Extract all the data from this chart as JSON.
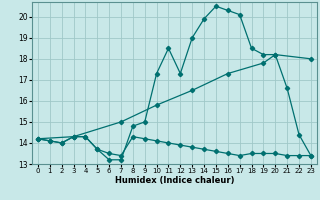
{
  "title": "",
  "xlabel": "Humidex (Indice chaleur)",
  "xlim": [
    -0.5,
    23.5
  ],
  "ylim": [
    13,
    20.7
  ],
  "yticks": [
    13,
    14,
    15,
    16,
    17,
    18,
    19,
    20
  ],
  "xticks": [
    0,
    1,
    2,
    3,
    4,
    5,
    6,
    7,
    8,
    9,
    10,
    11,
    12,
    13,
    14,
    15,
    16,
    17,
    18,
    19,
    20,
    21,
    22,
    23
  ],
  "bg_color": "#c8e8e8",
  "grid_color": "#a0c8c8",
  "line_color": "#007070",
  "line1_x": [
    0,
    1,
    2,
    3,
    4,
    5,
    6,
    7,
    8,
    9,
    10,
    11,
    12,
    13,
    14,
    15,
    16,
    17,
    18,
    19,
    20,
    21,
    22,
    23
  ],
  "line1_y": [
    14.2,
    14.1,
    14.0,
    14.3,
    14.3,
    13.7,
    13.2,
    13.2,
    14.8,
    15.0,
    17.3,
    18.5,
    17.3,
    19.0,
    19.9,
    20.5,
    20.3,
    20.1,
    18.5,
    18.2,
    18.2,
    16.6,
    14.4,
    13.4
  ],
  "line2_x": [
    0,
    1,
    2,
    3,
    4,
    5,
    6,
    7,
    8,
    9,
    10,
    11,
    12,
    13,
    14,
    15,
    16,
    17,
    18,
    19,
    20,
    21,
    22,
    23
  ],
  "line2_y": [
    14.2,
    14.1,
    14.0,
    14.3,
    14.3,
    13.7,
    13.5,
    13.4,
    14.3,
    14.2,
    14.1,
    14.0,
    13.9,
    13.8,
    13.7,
    13.6,
    13.5,
    13.4,
    13.5,
    13.5,
    13.5,
    13.4,
    13.4,
    13.4
  ],
  "line3_x": [
    0,
    3,
    7,
    10,
    13,
    16,
    19,
    20,
    23
  ],
  "line3_y": [
    14.2,
    14.3,
    15.0,
    15.8,
    16.5,
    17.3,
    17.8,
    18.2,
    18.0
  ]
}
